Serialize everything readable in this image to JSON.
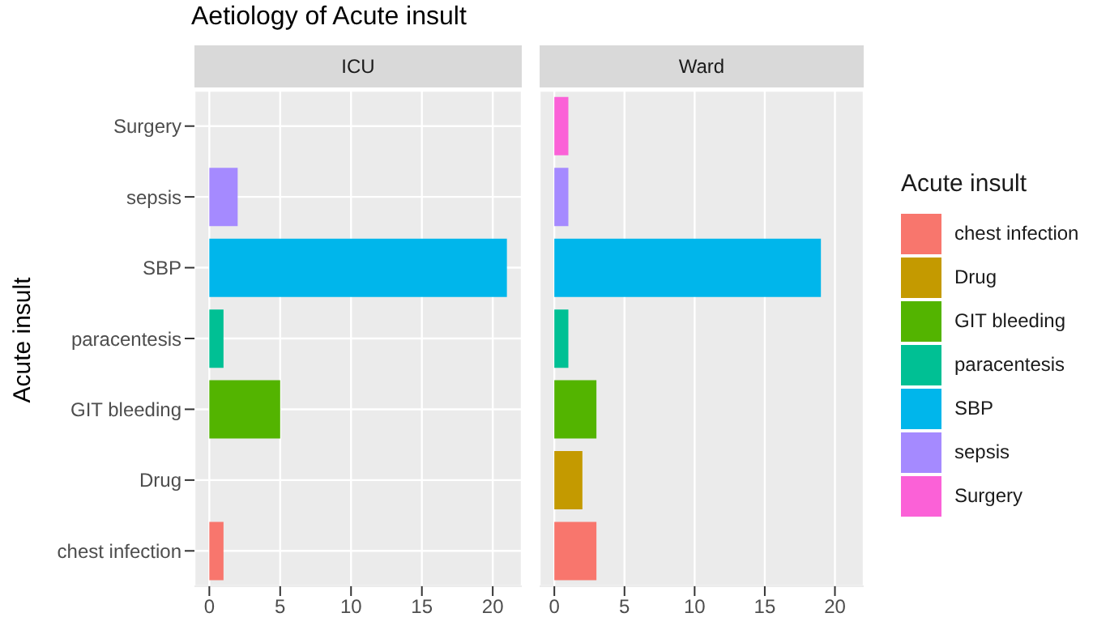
{
  "chart_data": [
    {
      "type": "bar",
      "orientation": "horizontal",
      "stacked": true,
      "title": "Aetiology of Acute insult",
      "subtitle": "ICU",
      "ylabel": "Acute insult",
      "categories": [
        "Surgery",
        "sepsis",
        "SBP",
        "paracentesis",
        "GIT bleeding",
        "Drug",
        "chest infection"
      ],
      "series": [
        {
          "color": "#f8766d",
          "values": [
            null,
            null,
            null,
            null,
            null,
            null,
            1
          ]
        },
        {
          "color": "#c49a00",
          "values": [
            null,
            null,
            null,
            null,
            null,
            0,
            null
          ]
        },
        {
          "color": "#53b400",
          "values": [
            null,
            null,
            null,
            null,
            5,
            null,
            null
          ]
        },
        {
          "color": "#00c094",
          "values": [
            null,
            null,
            null,
            1,
            null,
            null,
            null
          ]
        },
        {
          "color": "#00b6eb",
          "values": [
            null,
            null,
            21,
            null,
            null,
            null,
            null
          ]
        },
        {
          "color": "#a58aff",
          "values": [
            null,
            2,
            null,
            null,
            null,
            null,
            null
          ]
        },
        {
          "color": "#fb61d7",
          "values": [
            0,
            null,
            null,
            null,
            null,
            null,
            null
          ]
        }
      ],
      "xlim": [
        -1.05,
        22.05
      ],
      "xticks": [
        0,
        5,
        10,
        15,
        20
      ],
      "grid": true,
      "legend": false
    },
    {
      "type": "bar",
      "orientation": "horizontal",
      "stacked": true,
      "subtitle": "Ward",
      "legend_title": "Acute insult",
      "categories": [
        null,
        null,
        null,
        null,
        null,
        null,
        null
      ],
      "series": [
        {
          "name": "chest infection",
          "color": "#f8766d",
          "values": [
            null,
            null,
            null,
            null,
            null,
            null,
            3
          ]
        },
        {
          "name": "Drug",
          "color": "#c49a00",
          "values": [
            null,
            null,
            null,
            null,
            null,
            2,
            null
          ]
        },
        {
          "name": "GIT bleeding",
          "color": "#53b400",
          "values": [
            null,
            null,
            null,
            null,
            3,
            null,
            null
          ]
        },
        {
          "name": "paracentesis",
          "color": "#00c094",
          "values": [
            null,
            null,
            null,
            1,
            null,
            null,
            null
          ]
        },
        {
          "name": "SBP",
          "color": "#00b6eb",
          "values": [
            null,
            null,
            19,
            null,
            null,
            null,
            null
          ]
        },
        {
          "name": "sepsis",
          "color": "#a58aff",
          "values": [
            null,
            1,
            null,
            null,
            null,
            null,
            null
          ]
        },
        {
          "name": "Surgery",
          "color": "#fb61d7",
          "values": [
            1,
            null,
            null,
            null,
            null,
            null,
            null
          ]
        }
      ],
      "xlim": [
        -1.05,
        22.05
      ],
      "xticks": [
        0,
        5,
        10,
        15,
        20
      ],
      "grid": true,
      "legend": "right",
      "tick_labels": "x"
    }
  ]
}
